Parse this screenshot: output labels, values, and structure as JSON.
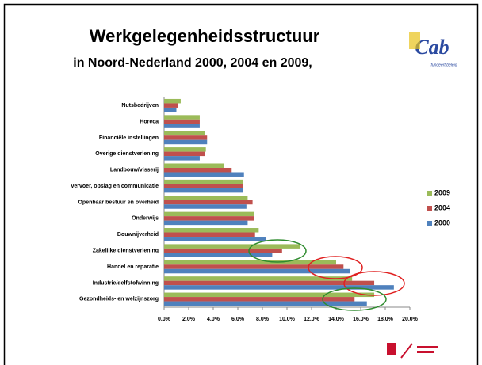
{
  "header": {
    "title": "Werkgelegenheidsstructuur",
    "subtitle": "in Noord-Nederland 2000, 2004 en 2009,",
    "logo": "Cab",
    "logo_tagline": "fundeert beleid"
  },
  "chart_data": {
    "type": "hbar",
    "categories": [
      "Nutsbedrijven",
      "Horeca",
      "Financiële instellingen",
      "Overige dienstverlening",
      "Landbouw/visserij",
      "Vervoer, opslag en communicatie",
      "Openbaar bestuur en overheid",
      "Onderwijs",
      "Bouwnijverheid",
      "Zakelijke dienstverlening",
      "Handel en reparatie",
      "Industrie/delfstofwinning",
      "Gezondheids- en welzijnszorg"
    ],
    "series": [
      {
        "name": "2009",
        "color": "#9bbb59",
        "values": [
          1.35,
          2.9,
          3.3,
          3.4,
          4.9,
          6.4,
          6.8,
          7.3,
          7.7,
          11.1,
          14.0,
          15.3,
          17.1
        ]
      },
      {
        "name": "2004",
        "color": "#c0504d",
        "values": [
          1.1,
          2.9,
          3.5,
          3.3,
          5.5,
          6.4,
          7.2,
          7.3,
          7.4,
          9.6,
          14.6,
          17.1,
          15.5
        ]
      },
      {
        "name": "2000",
        "color": "#4f81bd",
        "values": [
          1.0,
          2.9,
          3.5,
          2.9,
          6.5,
          6.4,
          6.7,
          6.8,
          8.3,
          8.8,
          15.1,
          18.7,
          16.5
        ]
      }
    ],
    "xlim": [
      0,
      20
    ],
    "xticks": [
      {
        "value": 0,
        "label": "0.0%"
      },
      {
        "value": 2,
        "label": "2.0%"
      },
      {
        "value": 4,
        "label": "4.0%"
      },
      {
        "value": 6,
        "label": "6.0%"
      },
      {
        "value": 8,
        "label": "8.0%"
      },
      {
        "value": 10,
        "label": "10.0%"
      },
      {
        "value": 12,
        "label": "12.0%"
      },
      {
        "value": 14,
        "label": "14.0%"
      },
      {
        "value": 16,
        "label": "16.0%"
      },
      {
        "value": 18,
        "label": "18.0%"
      },
      {
        "value": 20,
        "label": "20.0%"
      }
    ],
    "legend": "right"
  }
}
